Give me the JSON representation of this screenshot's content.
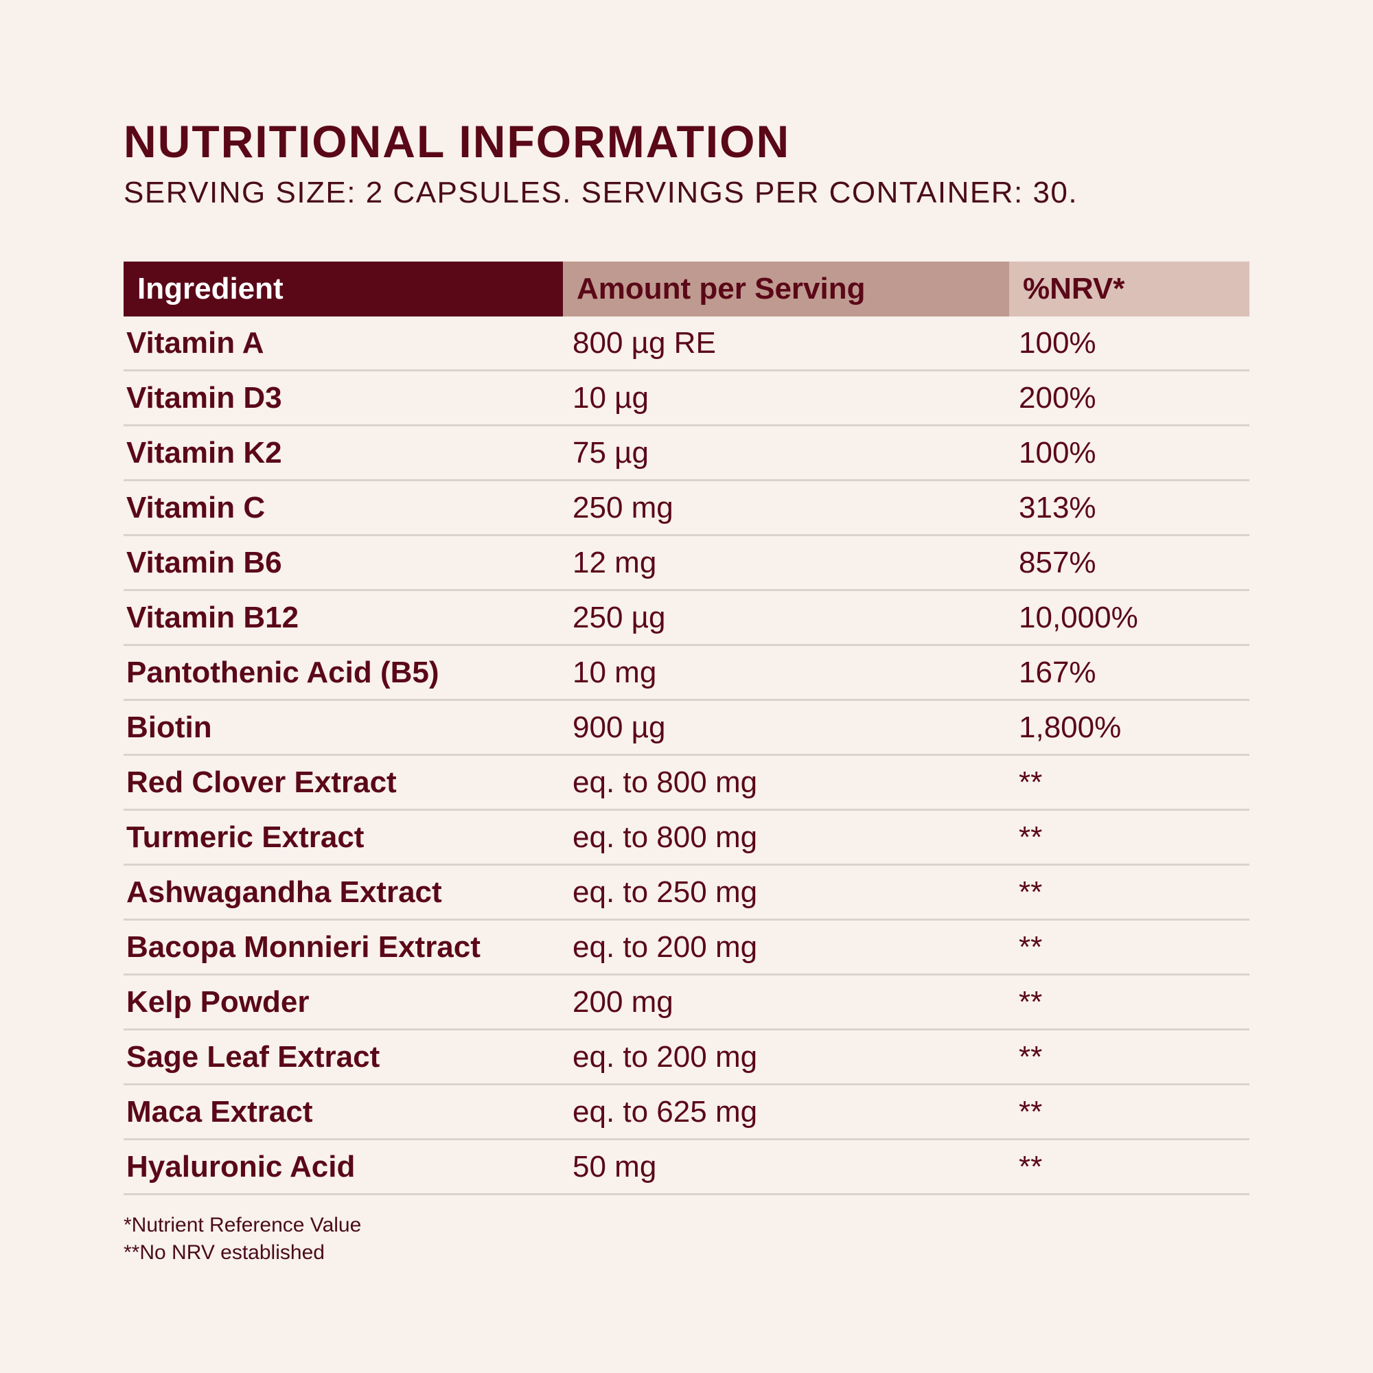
{
  "title": "NUTRITIONAL INFORMATION",
  "subtitle": "SERVING SIZE: 2 CAPSULES. SERVINGS PER CONTAINER: 30.",
  "colors": {
    "primary": "#5a0818",
    "header_mid": "#bf9a90",
    "header_light": "#dbc0b8",
    "background": "#f8f1ec"
  },
  "table": {
    "headers": [
      "Ingredient",
      "Amount per Serving",
      "%NRV*"
    ],
    "rows": [
      [
        "Vitamin A",
        "800 µg RE",
        "100%"
      ],
      [
        "Vitamin D3",
        "10 µg",
        "200%"
      ],
      [
        "Vitamin K2",
        "75 µg",
        "100%"
      ],
      [
        "Vitamin C",
        "250 mg",
        "313%"
      ],
      [
        "Vitamin B6",
        "12 mg",
        "857%"
      ],
      [
        "Vitamin B12",
        "250 µg",
        "10,000%"
      ],
      [
        "Pantothenic Acid (B5)",
        "10 mg",
        "167%"
      ],
      [
        "Biotin",
        "900 µg",
        "1,800%"
      ],
      [
        "Red Clover Extract",
        "eq. to 800 mg",
        "**"
      ],
      [
        "Turmeric Extract",
        "eq. to 800 mg",
        "**"
      ],
      [
        "Ashwagandha Extract",
        "eq. to 250 mg",
        "**"
      ],
      [
        "Bacopa Monnieri Extract",
        "eq. to 200 mg",
        "**"
      ],
      [
        "Kelp Powder",
        "200 mg",
        "**"
      ],
      [
        "Sage Leaf Extract",
        "eq. to 200 mg",
        "**"
      ],
      [
        "Maca Extract",
        "eq. to 625 mg",
        "**"
      ],
      [
        "Hyaluronic Acid",
        "50 mg",
        "**"
      ]
    ]
  },
  "footnotes": [
    "*Nutrient Reference Value",
    "**No NRV established"
  ]
}
